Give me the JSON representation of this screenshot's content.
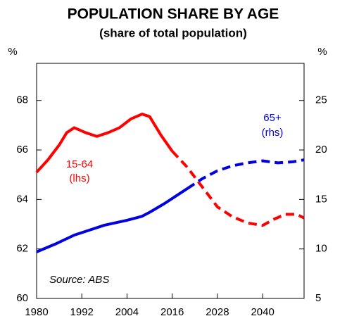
{
  "chart_data": {
    "type": "line",
    "title": "POPULATION SHARE BY AGE",
    "subtitle": "(share of total population)",
    "y_unit": "%",
    "y2_unit": "%",
    "source": "Source: ABS",
    "xlim": [
      1980,
      2051
    ],
    "xticks": [
      1980,
      1992,
      2004,
      2016,
      2028,
      2040
    ],
    "ylim": [
      60,
      69.5
    ],
    "yticks": [
      60,
      62,
      64,
      66,
      68
    ],
    "y2lim": [
      5,
      28.75
    ],
    "y2ticks": [
      5,
      10,
      15,
      20,
      25
    ],
    "series": [
      {
        "name": "15-64",
        "note": "(lhs)",
        "color": "#ff0000",
        "axis": "y",
        "dashed_from": 2016,
        "x": [
          1980,
          1983,
          1986,
          1988,
          1990,
          1993,
          1996,
          1999,
          2002,
          2005,
          2008,
          2010,
          2013,
          2016,
          2020,
          2024,
          2028,
          2032,
          2036,
          2040,
          2043,
          2046,
          2049,
          2051
        ],
        "values": [
          65.1,
          65.6,
          66.2,
          66.7,
          66.9,
          66.7,
          66.55,
          66.7,
          66.9,
          67.25,
          67.45,
          67.35,
          66.6,
          65.95,
          65.3,
          64.5,
          63.7,
          63.3,
          63.05,
          62.95,
          63.2,
          63.4,
          63.4,
          63.25
        ]
      },
      {
        "name": "65+",
        "note": "(rhs)",
        "color": "#0000e0",
        "axis": "y2",
        "dashed_from": 2020,
        "x": [
          1980,
          1985,
          1990,
          1994,
          1998,
          2004,
          2008,
          2010,
          2014,
          2018,
          2020,
          2024,
          2028,
          2032,
          2036,
          2040,
          2044,
          2048,
          2051
        ],
        "values": [
          9.7,
          10.5,
          11.4,
          11.9,
          12.4,
          12.9,
          13.3,
          13.7,
          14.6,
          15.6,
          16.1,
          17.1,
          17.9,
          18.4,
          18.7,
          18.9,
          18.7,
          18.8,
          19.0
        ]
      }
    ]
  }
}
